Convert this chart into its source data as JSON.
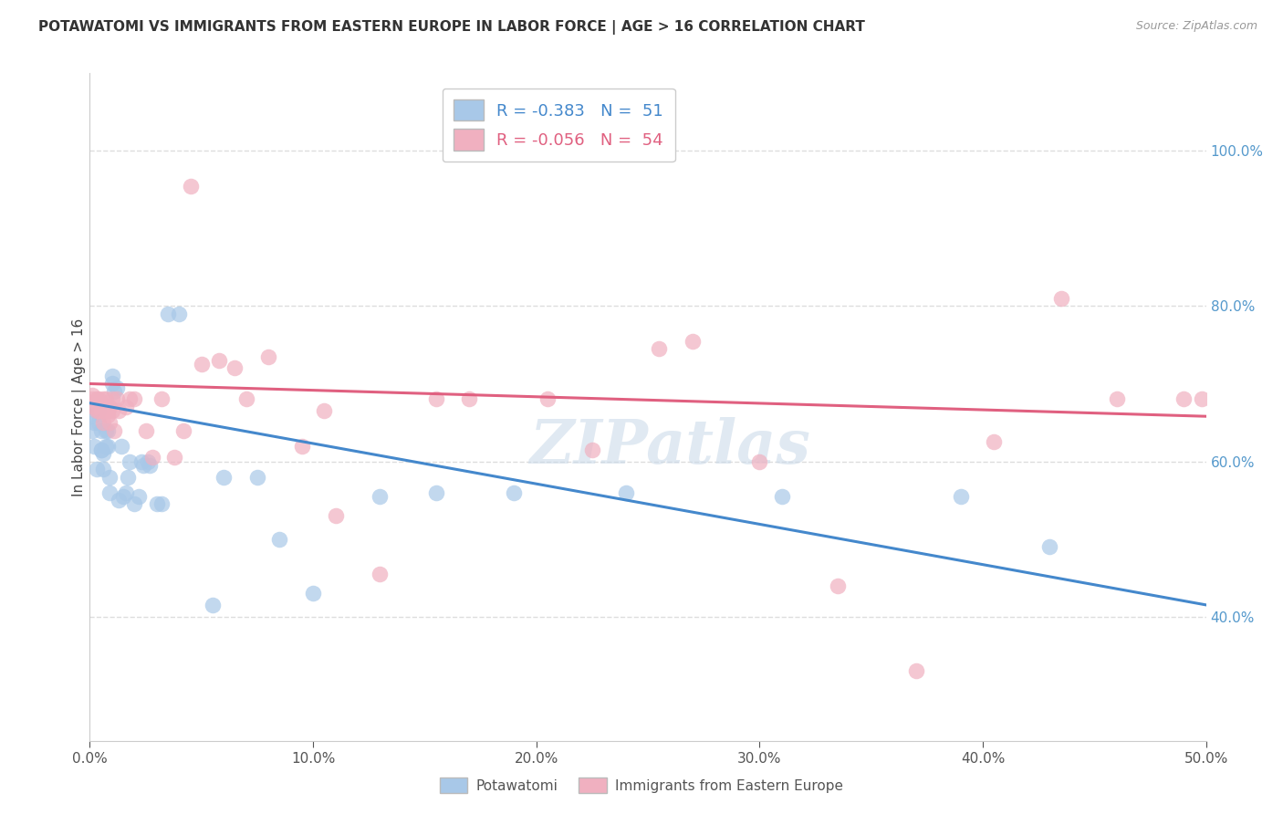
{
  "title": "POTAWATOMI VS IMMIGRANTS FROM EASTERN EUROPE IN LABOR FORCE | AGE > 16 CORRELATION CHART",
  "source": "Source: ZipAtlas.com",
  "ylabel": "In Labor Force | Age > 16",
  "r1": "-0.383",
  "n1": "51",
  "r2": "-0.056",
  "n2": "54",
  "blue_color": "#a8c8e8",
  "pink_color": "#f0b0c0",
  "blue_line_color": "#4488cc",
  "pink_line_color": "#e06080",
  "blue_line_x0": 0.0,
  "blue_line_y0": 0.675,
  "blue_line_x1": 0.5,
  "blue_line_y1": 0.415,
  "pink_line_x0": 0.0,
  "pink_line_y0": 0.7,
  "pink_line_x1": 0.5,
  "pink_line_y1": 0.658,
  "xlim": [
    0.0,
    0.5
  ],
  "ylim": [
    0.24,
    1.1
  ],
  "yticks": [
    0.4,
    0.6,
    0.8,
    1.0
  ],
  "xticks": [
    0.0,
    0.1,
    0.2,
    0.3,
    0.4,
    0.5
  ],
  "legend1_label": "Potawatomi",
  "legend2_label": "Immigrants from Eastern Europe",
  "watermark": "ZIPatlas",
  "background_color": "#ffffff",
  "grid_color": "#dddddd",
  "blue_x": [
    0.001,
    0.001,
    0.002,
    0.002,
    0.003,
    0.003,
    0.004,
    0.004,
    0.005,
    0.005,
    0.005,
    0.006,
    0.006,
    0.007,
    0.007,
    0.008,
    0.008,
    0.009,
    0.009,
    0.01,
    0.01,
    0.011,
    0.012,
    0.013,
    0.014,
    0.015,
    0.016,
    0.017,
    0.018,
    0.02,
    0.022,
    0.023,
    0.024,
    0.026,
    0.027,
    0.03,
    0.032,
    0.035,
    0.04,
    0.055,
    0.06,
    0.075,
    0.085,
    0.1,
    0.13,
    0.155,
    0.19,
    0.24,
    0.31,
    0.39,
    0.43
  ],
  "blue_y": [
    0.64,
    0.66,
    0.65,
    0.62,
    0.665,
    0.59,
    0.65,
    0.665,
    0.615,
    0.615,
    0.64,
    0.59,
    0.61,
    0.62,
    0.64,
    0.62,
    0.64,
    0.56,
    0.58,
    0.7,
    0.71,
    0.69,
    0.695,
    0.55,
    0.62,
    0.555,
    0.56,
    0.58,
    0.6,
    0.545,
    0.555,
    0.6,
    0.595,
    0.6,
    0.595,
    0.545,
    0.545,
    0.79,
    0.79,
    0.415,
    0.58,
    0.58,
    0.5,
    0.43,
    0.555,
    0.56,
    0.56,
    0.56,
    0.555,
    0.555,
    0.49
  ],
  "pink_x": [
    0.001,
    0.001,
    0.002,
    0.003,
    0.003,
    0.004,
    0.004,
    0.005,
    0.005,
    0.006,
    0.006,
    0.007,
    0.007,
    0.008,
    0.008,
    0.009,
    0.009,
    0.01,
    0.01,
    0.011,
    0.012,
    0.013,
    0.016,
    0.018,
    0.02,
    0.025,
    0.028,
    0.032,
    0.038,
    0.042,
    0.045,
    0.05,
    0.058,
    0.065,
    0.07,
    0.08,
    0.095,
    0.105,
    0.11,
    0.13,
    0.155,
    0.17,
    0.205,
    0.225,
    0.255,
    0.27,
    0.3,
    0.335,
    0.37,
    0.405,
    0.435,
    0.46,
    0.49,
    0.498
  ],
  "pink_y": [
    0.68,
    0.685,
    0.67,
    0.665,
    0.68,
    0.665,
    0.68,
    0.665,
    0.675,
    0.65,
    0.68,
    0.665,
    0.68,
    0.66,
    0.665,
    0.65,
    0.67,
    0.665,
    0.68,
    0.64,
    0.68,
    0.665,
    0.67,
    0.68,
    0.68,
    0.64,
    0.605,
    0.68,
    0.605,
    0.64,
    0.955,
    0.725,
    0.73,
    0.72,
    0.68,
    0.735,
    0.62,
    0.665,
    0.53,
    0.455,
    0.68,
    0.68,
    0.68,
    0.615,
    0.745,
    0.755,
    0.6,
    0.44,
    0.33,
    0.625,
    0.81,
    0.68,
    0.68,
    0.68
  ]
}
